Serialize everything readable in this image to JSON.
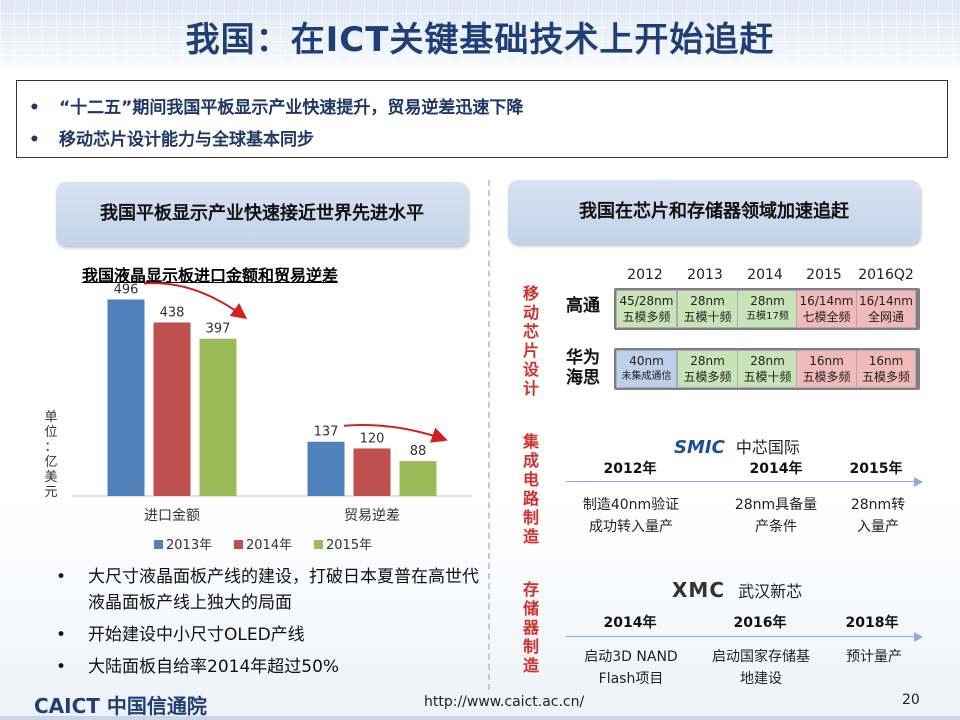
{
  "header": {
    "title": "我国：在ICT关键基础技术上开始追赶"
  },
  "summary": {
    "bullet_glyph": "•",
    "items": [
      "“十二五”期间我国平板显示产业快速提升，贸易逆差迅速下降",
      "移动芯片设计能力与全球基本同步"
    ]
  },
  "left_panel": {
    "heading": "我国平板显示产业快速接近世界先进水平",
    "unit_label": "单位：亿美元",
    "bullets": [
      "大尺寸液晶面板产线的建设，打破日本夏普在高世代液晶面板产线上独大的局面",
      "开始建设中小尺寸OLED产线",
      "大陆面板自给率2014年超过50%"
    ]
  },
  "chart_data": {
    "type": "bar",
    "title": "我国液晶显示板进口金额和贸易逆差",
    "categories": [
      "进口金额",
      "贸易逆差"
    ],
    "series": [
      {
        "name": "2013年",
        "values": [
          496,
          137
        ],
        "color": "#4f81bd"
      },
      {
        "name": "2014年",
        "values": [
          438,
          120
        ],
        "color": "#c0504d"
      },
      {
        "name": "2015年",
        "values": [
          397,
          88
        ],
        "color": "#9bbb59"
      }
    ],
    "ylabel": "单位：亿美元",
    "ylim": [
      0,
      520
    ],
    "legend": "bottom",
    "annotations": [
      "red arrow trending down over each category"
    ]
  },
  "right_panel": {
    "heading": "我国在芯片和存储器领域加速追赶",
    "mobile_chip": {
      "section_label": "移动芯片设计",
      "years": [
        "2012",
        "2013",
        "2014",
        "2015",
        "2016Q2"
      ],
      "rows": [
        {
          "label": "高通",
          "cells": [
            {
              "line1": "45/28nm",
              "line2": "五模多频",
              "color": "green"
            },
            {
              "line1": "28nm",
              "line2": "五模十频",
              "color": "green"
            },
            {
              "line1": "28nm",
              "line2": "五模17频",
              "color": "green"
            },
            {
              "line1": "16/14nm",
              "line2": "七模全频",
              "color": "pink"
            },
            {
              "line1": "16/14nm",
              "line2": "全网通",
              "color": "pink"
            }
          ]
        },
        {
          "label": "华为海思",
          "label_line1": "华为",
          "label_line2": "海思",
          "cells": [
            {
              "line1": "40nm",
              "line2": "未集成通信",
              "color": "blue"
            },
            {
              "line1": "28nm",
              "line2": "五模多频",
              "color": "green"
            },
            {
              "line1": "28nm",
              "line2": "五模十频",
              "color": "green"
            },
            {
              "line1": "16nm",
              "line2": "五模多频",
              "color": "pink"
            },
            {
              "line1": "16nm",
              "line2": "五模多频",
              "color": "pink"
            }
          ]
        }
      ]
    },
    "ic_manufacturing": {
      "section_label": "集成电路制造",
      "company": "中芯国际",
      "logo_text": "SMIC",
      "milestones": [
        {
          "year": "2012年",
          "desc": "制造40nm验证成功转入量产",
          "desc_line1": "制造40nm验证",
          "desc_line2": "成功转入量产"
        },
        {
          "year": "2014年",
          "desc": "28nm具备量产条件",
          "desc_line1": "28nm具备量",
          "desc_line2": "产条件"
        },
        {
          "year": "2015年",
          "desc": "28nm转入量产",
          "desc_line1": "28nm转",
          "desc_line2": "入量产"
        }
      ]
    },
    "memory_manufacturing": {
      "section_label": "存储器制造",
      "company": "武汉新芯",
      "logo_text": "XMC",
      "milestones": [
        {
          "year": "2014年",
          "desc_line1": "启动3D NAND",
          "desc_line2": "Flash项目"
        },
        {
          "year": "2016年",
          "desc_line1": "启动国家存储基",
          "desc_line2": "地建设"
        },
        {
          "year": "2018年",
          "desc_line1": "预计量产",
          "desc_line2": ""
        }
      ]
    }
  },
  "footer": {
    "logo_text": "CAICT 中国信通院",
    "url": "http://www.caict.ac.cn/",
    "page_number": "20"
  }
}
